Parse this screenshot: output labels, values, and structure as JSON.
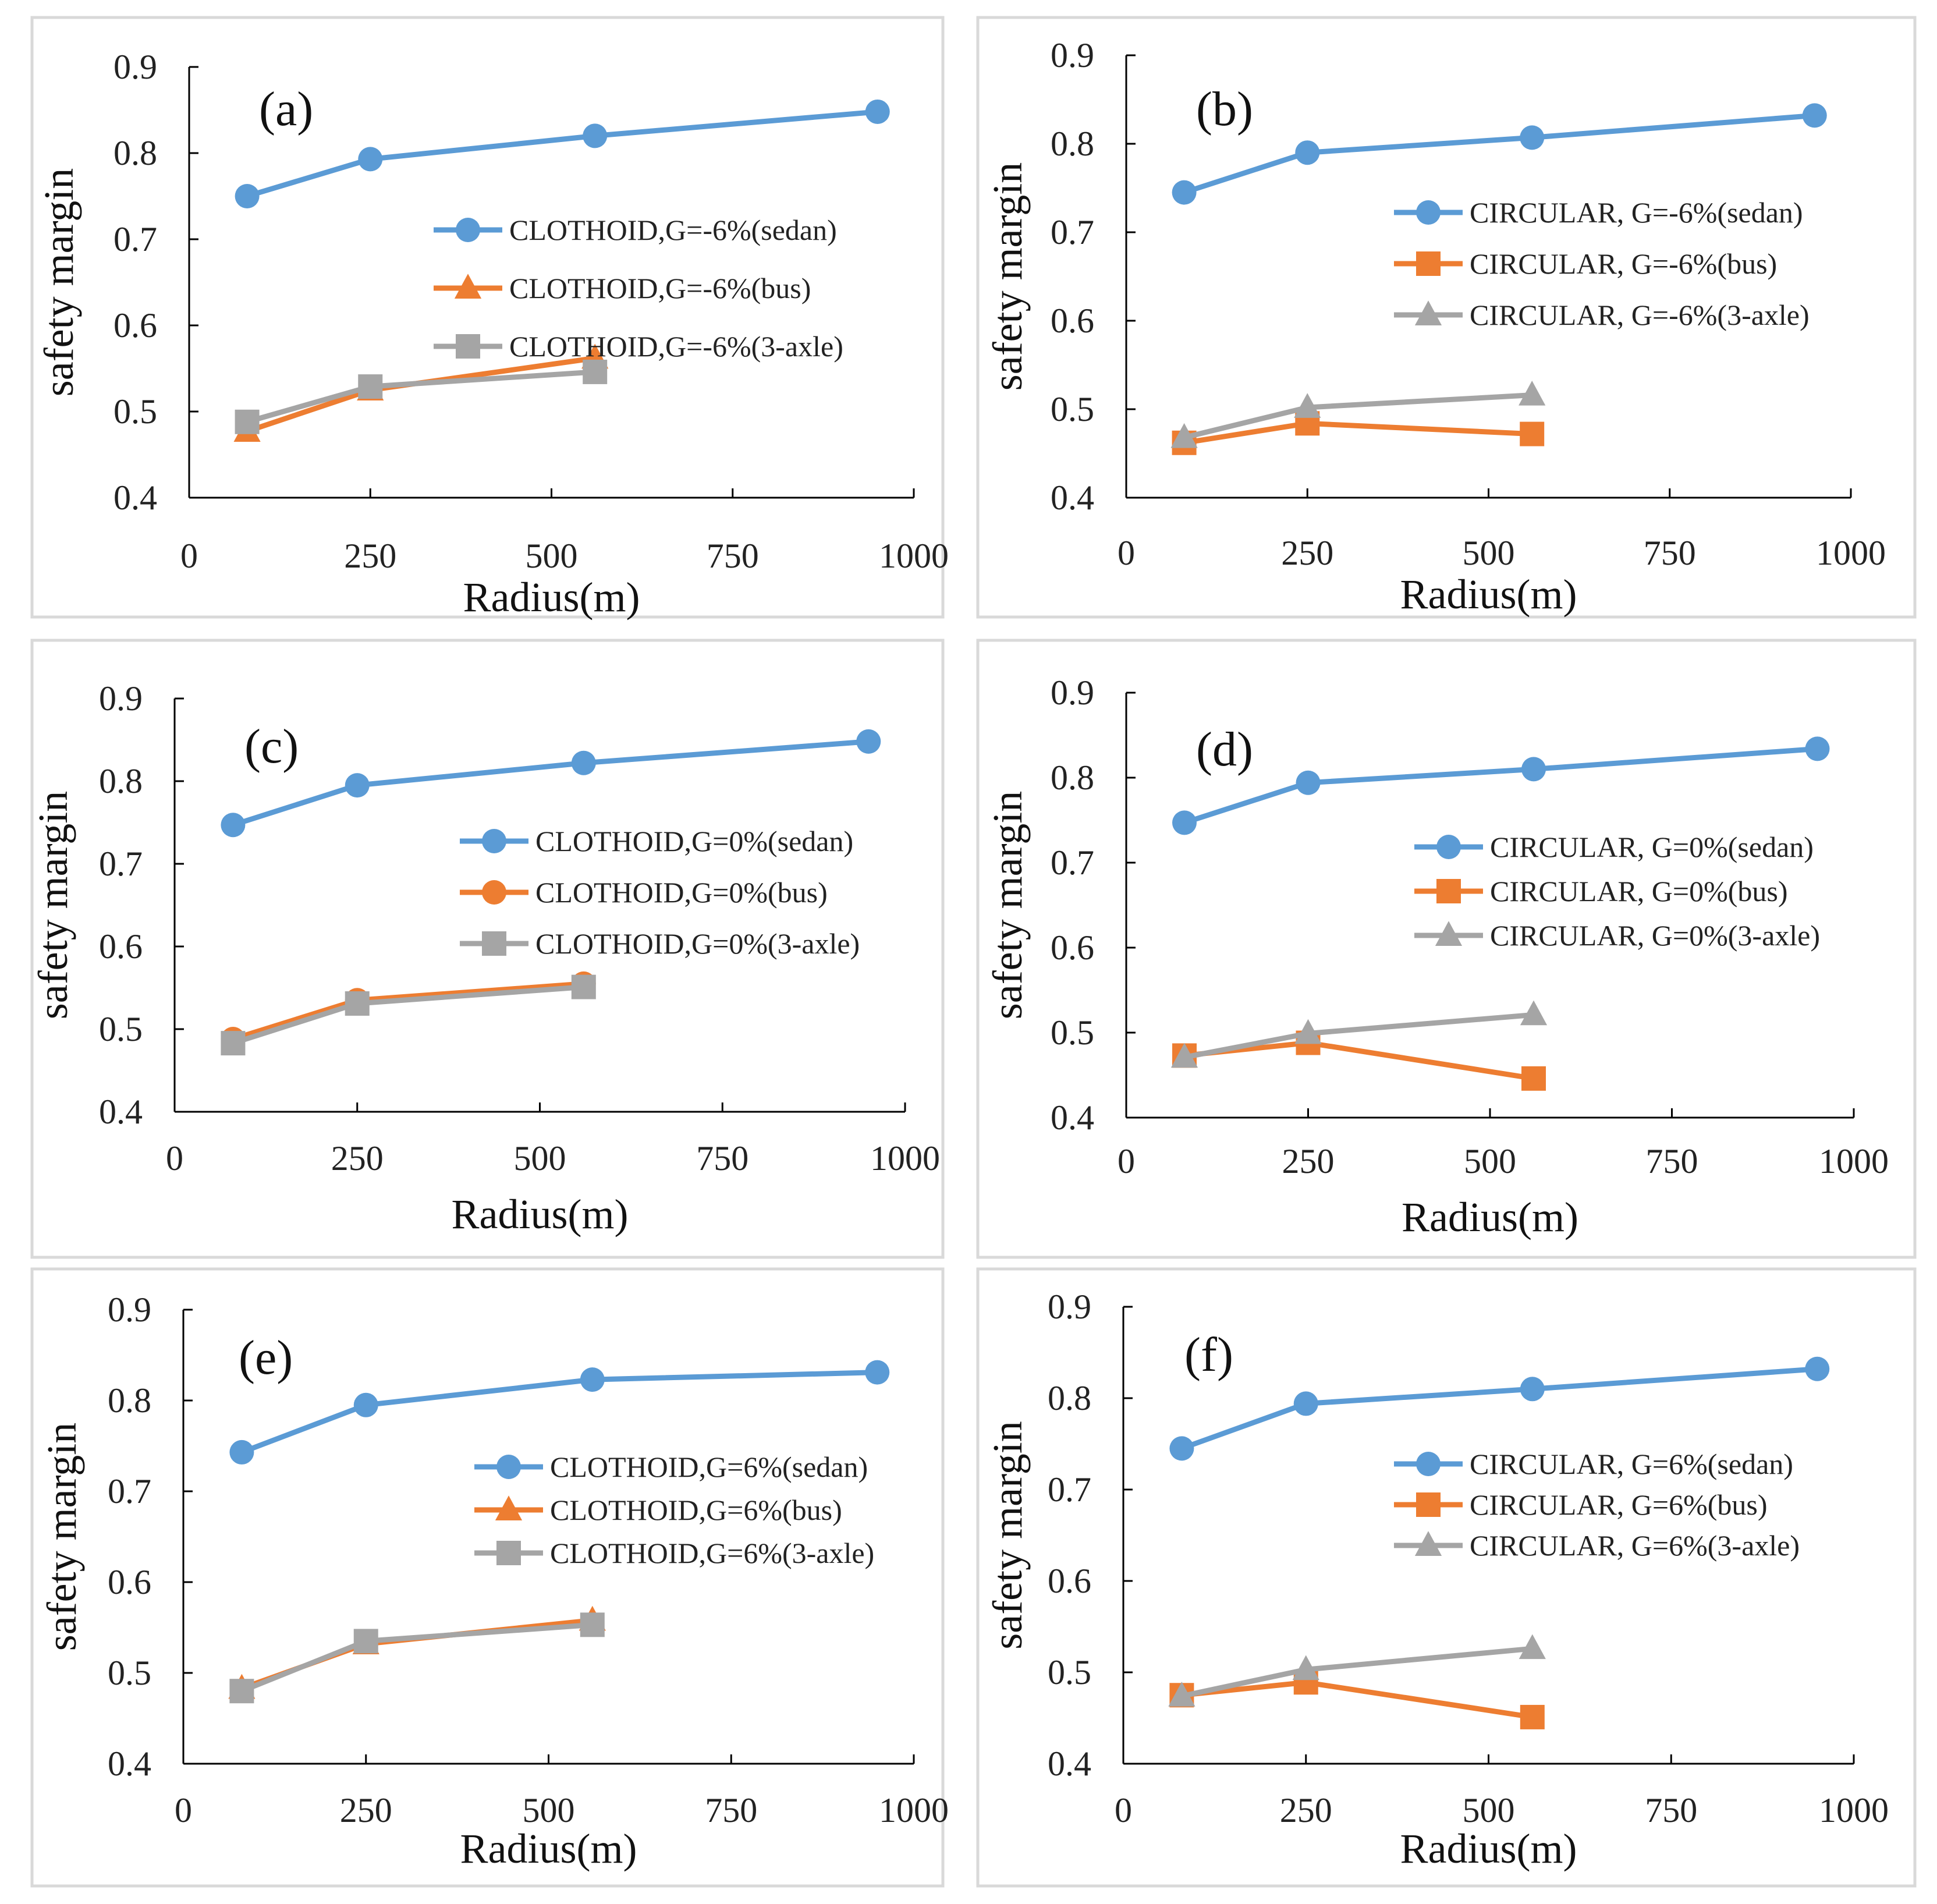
{
  "colors": {
    "sedan": "#5B9BD5",
    "bus": "#ED7D31",
    "axle3": "#A5A5A5",
    "frame": "#D9D9D9",
    "axis": "#000000"
  },
  "chart_data": [
    {
      "type": "line",
      "panel_label": "(a)",
      "xlabel": "Radius(m)",
      "ylabel": "safety margin",
      "xlim": [
        0,
        1000
      ],
      "ylim": [
        0.4,
        0.9
      ],
      "xticks": [
        0,
        250,
        500,
        750,
        1000
      ],
      "yticks": [
        0.4,
        0.5,
        0.6,
        0.7,
        0.8,
        0.9
      ],
      "series": [
        {
          "name": "CLOTHOID,G=-6%(sedan)",
          "marker": "circle",
          "color": "sedan",
          "x": [
            80,
            250,
            560,
            950
          ],
          "y": [
            0.75,
            0.793,
            0.82,
            0.848
          ]
        },
        {
          "name": "CLOTHOID,G=-6%(bus)",
          "marker": "triangle",
          "color": "bus",
          "x": [
            80,
            250,
            560
          ],
          "y": [
            0.477,
            0.525,
            0.562
          ]
        },
        {
          "name": "CLOTHOID,G=-6%(3-axle)",
          "marker": "square",
          "color": "axle3",
          "x": [
            80,
            250,
            560
          ],
          "y": [
            0.488,
            0.529,
            0.546
          ]
        }
      ]
    },
    {
      "type": "line",
      "panel_label": "(b)",
      "xlabel": "Radius(m)",
      "ylabel": "safety margin",
      "xlim": [
        0,
        1000
      ],
      "ylim": [
        0.4,
        0.9
      ],
      "xticks": [
        0,
        250,
        500,
        750,
        1000
      ],
      "yticks": [
        0.4,
        0.5,
        0.6,
        0.7,
        0.8,
        0.9
      ],
      "series": [
        {
          "name": "CIRCULAR, G=-6%(sedan)",
          "marker": "circle",
          "color": "sedan",
          "x": [
            80,
            250,
            560,
            950
          ],
          "y": [
            0.745,
            0.79,
            0.807,
            0.832
          ]
        },
        {
          "name": "CIRCULAR, G=-6%(bus)",
          "marker": "square",
          "color": "bus",
          "x": [
            80,
            250,
            560
          ],
          "y": [
            0.462,
            0.484,
            0.472
          ]
        },
        {
          "name": "CIRCULAR, G=-6%(3-axle)",
          "marker": "triangle",
          "color": "axle3",
          "x": [
            80,
            250,
            560
          ],
          "y": [
            0.468,
            0.502,
            0.516
          ]
        }
      ]
    },
    {
      "type": "line",
      "panel_label": "(c)",
      "xlabel": "Radius(m)",
      "ylabel": "safety margin",
      "xlim": [
        0,
        1000
      ],
      "ylim": [
        0.4,
        0.9
      ],
      "xticks": [
        0,
        250,
        500,
        750,
        1000
      ],
      "yticks": [
        0.4,
        0.5,
        0.6,
        0.7,
        0.8,
        0.9
      ],
      "series": [
        {
          "name": "CLOTHOID,G=0%(sedan)",
          "marker": "circle",
          "color": "sedan",
          "x": [
            80,
            250,
            560,
            950
          ],
          "y": [
            0.747,
            0.795,
            0.822,
            0.848
          ]
        },
        {
          "name": "CLOTHOID,G=0%(bus)",
          "marker": "circle",
          "color": "bus",
          "x": [
            80,
            250,
            560
          ],
          "y": [
            0.488,
            0.535,
            0.555
          ]
        },
        {
          "name": "CLOTHOID,G=0%(3-axle)",
          "marker": "square",
          "color": "axle3",
          "x": [
            80,
            250,
            560
          ],
          "y": [
            0.483,
            0.531,
            0.551
          ]
        }
      ]
    },
    {
      "type": "line",
      "panel_label": "(d)",
      "xlabel": "Radius(m)",
      "ylabel": "safety margin",
      "xlim": [
        0,
        1000
      ],
      "ylim": [
        0.4,
        0.9
      ],
      "xticks": [
        0,
        250,
        500,
        750,
        1000
      ],
      "yticks": [
        0.4,
        0.5,
        0.6,
        0.7,
        0.8,
        0.9
      ],
      "series": [
        {
          "name": "CIRCULAR, G=0%(sedan)",
          "marker": "circle",
          "color": "sedan",
          "x": [
            80,
            250,
            560,
            950
          ],
          "y": [
            0.747,
            0.794,
            0.81,
            0.834
          ]
        },
        {
          "name": "CIRCULAR, G=0%(bus)",
          "marker": "square",
          "color": "bus",
          "x": [
            80,
            250,
            560
          ],
          "y": [
            0.473,
            0.488,
            0.446
          ]
        },
        {
          "name": "CIRCULAR, G=0%(3-axle)",
          "marker": "triangle",
          "color": "axle3",
          "x": [
            80,
            250,
            560
          ],
          "y": [
            0.471,
            0.499,
            0.521
          ]
        }
      ]
    },
    {
      "type": "line",
      "panel_label": "(e)",
      "xlabel": "Radius(m)",
      "ylabel": "safety margin",
      "xlim": [
        0,
        1000
      ],
      "ylim": [
        0.4,
        0.9
      ],
      "xticks": [
        0,
        250,
        500,
        750,
        1000
      ],
      "yticks": [
        0.4,
        0.5,
        0.6,
        0.7,
        0.8,
        0.9
      ],
      "series": [
        {
          "name": "CLOTHOID,G=6%(sedan)",
          "marker": "circle",
          "color": "sedan",
          "x": [
            80,
            250,
            560,
            950
          ],
          "y": [
            0.743,
            0.795,
            0.823,
            0.831
          ]
        },
        {
          "name": "CLOTHOID,G=6%(bus)",
          "marker": "triangle",
          "color": "bus",
          "x": [
            80,
            250,
            560
          ],
          "y": [
            0.483,
            0.532,
            0.558
          ]
        },
        {
          "name": "CLOTHOID,G=6%(3-axle)",
          "marker": "square",
          "color": "axle3",
          "x": [
            80,
            250,
            560
          ],
          "y": [
            0.48,
            0.535,
            0.553
          ]
        }
      ]
    },
    {
      "type": "line",
      "panel_label": "(f)",
      "xlabel": "Radius(m)",
      "ylabel": "safety margin",
      "xlim": [
        0,
        1000
      ],
      "ylim": [
        0.4,
        0.9
      ],
      "xticks": [
        0,
        250,
        500,
        750,
        1000
      ],
      "yticks": [
        0.4,
        0.5,
        0.6,
        0.7,
        0.8,
        0.9
      ],
      "series": [
        {
          "name": "CIRCULAR, G=6%(sedan)",
          "marker": "circle",
          "color": "sedan",
          "x": [
            80,
            250,
            560,
            950
          ],
          "y": [
            0.745,
            0.794,
            0.81,
            0.832
          ]
        },
        {
          "name": "CIRCULAR, G=6%(bus)",
          "marker": "square",
          "color": "bus",
          "x": [
            80,
            250,
            560
          ],
          "y": [
            0.475,
            0.489,
            0.451
          ]
        },
        {
          "name": "CIRCULAR, G=6%(3-axle)",
          "marker": "triangle",
          "color": "axle3",
          "x": [
            80,
            250,
            560
          ],
          "y": [
            0.474,
            0.503,
            0.526
          ]
        }
      ]
    }
  ]
}
